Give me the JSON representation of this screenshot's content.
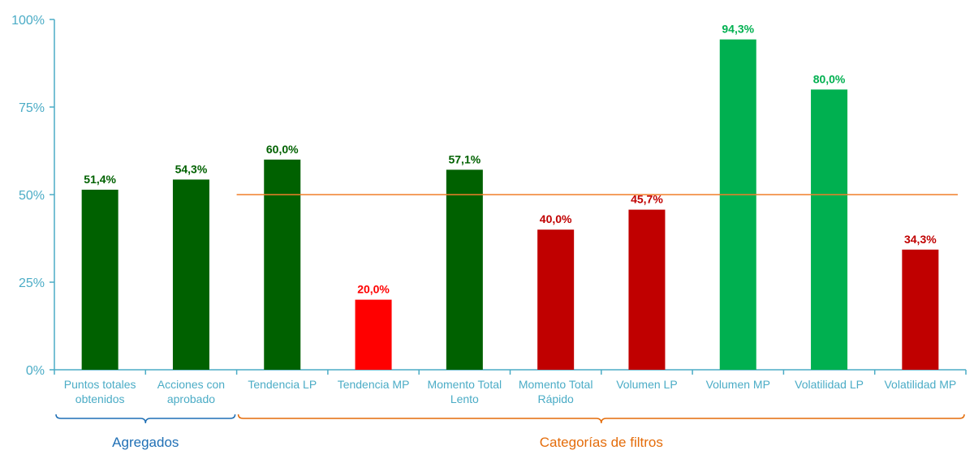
{
  "chart_data": {
    "type": "bar",
    "title": "",
    "xlabel": "",
    "ylabel": "",
    "ylim": [
      0,
      100
    ],
    "yticks": [
      "0%",
      "25%",
      "50%",
      "75%",
      "100%"
    ],
    "grid": false,
    "legend": "none",
    "categories": [
      [
        "Puntos totales",
        "obtenidos"
      ],
      [
        "Acciones con",
        "aprobado"
      ],
      [
        "Tendencia LP"
      ],
      [
        "Tendencia MP"
      ],
      [
        "Momento Total",
        "Lento"
      ],
      [
        "Momento Total",
        "Rápido"
      ],
      [
        "Volumen LP"
      ],
      [
        "Volumen MP"
      ],
      [
        "Volatilidad LP"
      ],
      [
        "Volatilidad MP"
      ]
    ],
    "values": [
      51.4,
      54.3,
      60.0,
      20.0,
      57.1,
      40.0,
      45.7,
      94.3,
      80.0,
      34.3
    ],
    "data_labels": [
      "51,4%",
      "54,3%",
      "60,0%",
      "20,0%",
      "57,1%",
      "40,0%",
      "45,7%",
      "94,3%",
      "80,0%",
      "34,3%"
    ],
    "bar_colors": [
      "#006100",
      "#006100",
      "#006100",
      "#ff0000",
      "#006100",
      "#c00000",
      "#c00000",
      "#00b050",
      "#00b050",
      "#c00000"
    ],
    "label_colors": [
      "#006100",
      "#006100",
      "#006100",
      "#ff0000",
      "#006100",
      "#c00000",
      "#c00000",
      "#00b050",
      "#00b050",
      "#c00000"
    ],
    "reference_line": {
      "value": 50,
      "from_category": 2,
      "to_category": 9,
      "color": "#f07f2a"
    },
    "groups": [
      {
        "label": "Agregados",
        "from_category": 0,
        "to_category": 1,
        "color": "#1f6fb5"
      },
      {
        "label": "Categorías de filtros",
        "from_category": 2,
        "to_category": 9,
        "color": "#e46c0a"
      }
    ],
    "axis_color": "#4bacc6"
  }
}
